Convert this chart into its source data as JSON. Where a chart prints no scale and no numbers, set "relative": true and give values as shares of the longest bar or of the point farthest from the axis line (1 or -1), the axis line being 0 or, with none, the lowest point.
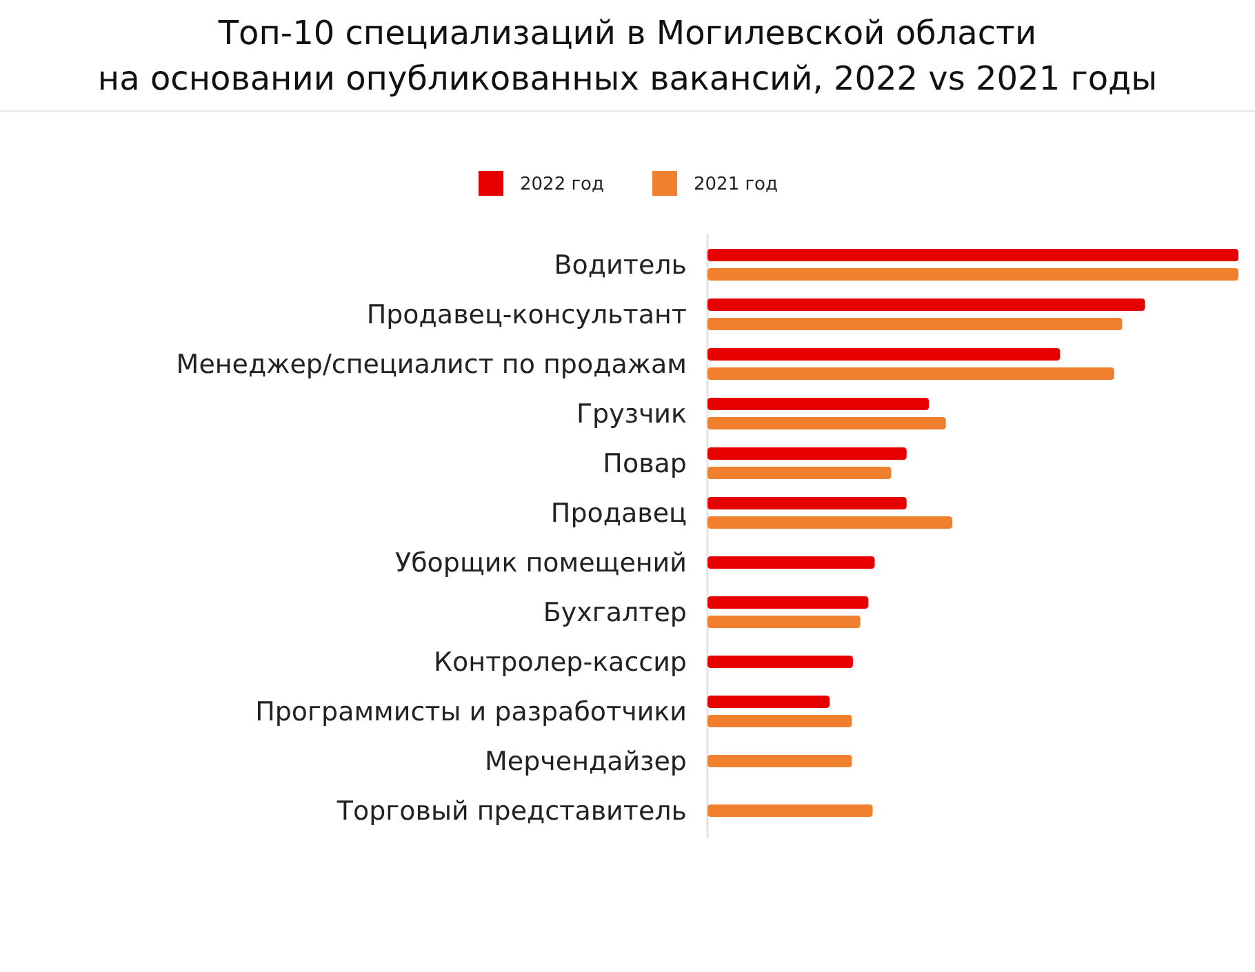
{
  "chart_data": {
    "type": "bar",
    "orientation": "horizontal",
    "relative": true,
    "title": "Топ-10 специализаций в Могилевской области\nна основании опубликованных вакансий, 2022 vs 2021 годы",
    "categories": [
      "Водитель",
      "Продавец-консультант",
      "Менеджер/специалист по продажам",
      "Грузчик",
      "Повар",
      "Продавец",
      "Уборщик помещений",
      "Бухгалтер",
      "Контролер-кассир",
      "Программисты и разработчики",
      "Мерчендайзер",
      "Торговый представитель"
    ],
    "series": [
      {
        "name": "2022 год",
        "color": "#e60000",
        "values": [
          1.0,
          0.824,
          0.664,
          0.417,
          0.375,
          0.375,
          0.315,
          0.303,
          0.274,
          0.23,
          null,
          null
        ]
      },
      {
        "name": "2021 год",
        "color": "#f07f2e",
        "values": [
          1.0,
          0.781,
          0.766,
          0.449,
          0.346,
          0.461,
          null,
          0.288,
          null,
          0.272,
          0.272,
          0.311
        ]
      }
    ],
    "legend": "top"
  }
}
